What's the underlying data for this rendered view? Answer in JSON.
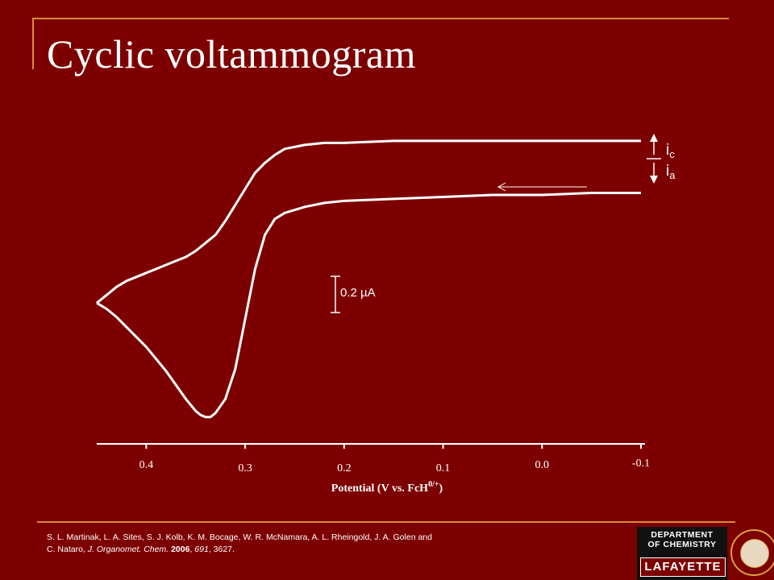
{
  "slide": {
    "title": "Cyclic voltammogram",
    "citation": {
      "pre": "S. L. Martinak, L. A. Sites, S. J. Kolb, K. M. Bocage, W. R. McNamara, A. L. Rheingold, J. A. Golen and C. Nataro, ",
      "journal": "J. Organomet. Chem.",
      "year": "2006",
      "volume": "691",
      "pages": "3627."
    },
    "logo": {
      "line1": "DEPARTMENT",
      "line2": "OF CHEMISTRY",
      "wordmark": "LAFAYETTE"
    }
  },
  "chart_data": {
    "type": "line",
    "title": "",
    "xlabel": "Potential (V vs. FcH",
    "xlabel_superscript": "0/+",
    "xlabel_close": ")",
    "x_ticks": [
      "0.4",
      "0.3",
      "0.2",
      "0.1",
      "0.0",
      "-0.1"
    ],
    "x_tick_values": [
      0.4,
      0.3,
      0.2,
      0.1,
      0.0,
      -0.1
    ],
    "xlim": [
      0.45,
      -0.1
    ],
    "ylabel": "",
    "ylim_uA": [
      -1.3,
      0.25
    ],
    "scale_bar": {
      "label": "0.2 µA",
      "value_uA": 0.2
    },
    "current_labels": {
      "cathodic": "i",
      "cathodic_sub": "c",
      "anodic": "i",
      "anodic_sub": "a"
    },
    "sweep_direction": "toward positive potential (right to left)",
    "series": [
      {
        "name": "",
        "x": [
          -0.1,
          -0.05,
          0.0,
          0.05,
          0.1,
          0.15,
          0.2,
          0.22,
          0.24,
          0.26,
          0.27,
          0.28,
          0.29,
          0.3,
          0.31,
          0.32,
          0.33,
          0.335,
          0.34,
          0.345,
          0.35,
          0.36,
          0.37,
          0.38,
          0.39,
          0.4,
          0.41,
          0.42,
          0.43,
          0.44,
          0.45
        ],
        "y_uA": [
          -0.07,
          -0.07,
          -0.08,
          -0.08,
          -0.09,
          -0.1,
          -0.11,
          -0.12,
          -0.14,
          -0.17,
          -0.2,
          -0.28,
          -0.45,
          -0.7,
          -0.95,
          -1.1,
          -1.17,
          -1.19,
          -1.19,
          -1.18,
          -1.16,
          -1.1,
          -1.03,
          -0.96,
          -0.9,
          -0.84,
          -0.79,
          -0.74,
          -0.69,
          -0.65,
          -0.62
        ]
      },
      {
        "name": "",
        "x": [
          0.45,
          0.44,
          0.43,
          0.42,
          0.41,
          0.4,
          0.39,
          0.38,
          0.37,
          0.36,
          0.35,
          0.34,
          0.33,
          0.32,
          0.31,
          0.3,
          0.29,
          0.28,
          0.27,
          0.26,
          0.25,
          0.24,
          0.22,
          0.2,
          0.15,
          0.1,
          0.05,
          0.0,
          -0.05,
          -0.1
        ],
        "y_uA": [
          -0.62,
          -0.58,
          -0.54,
          -0.51,
          -0.49,
          -0.47,
          -0.45,
          -0.43,
          -0.41,
          -0.39,
          -0.36,
          -0.32,
          -0.28,
          -0.21,
          -0.13,
          -0.05,
          0.03,
          0.08,
          0.12,
          0.15,
          0.16,
          0.17,
          0.18,
          0.18,
          0.19,
          0.19,
          0.19,
          0.19,
          0.19,
          0.19
        ]
      }
    ]
  }
}
